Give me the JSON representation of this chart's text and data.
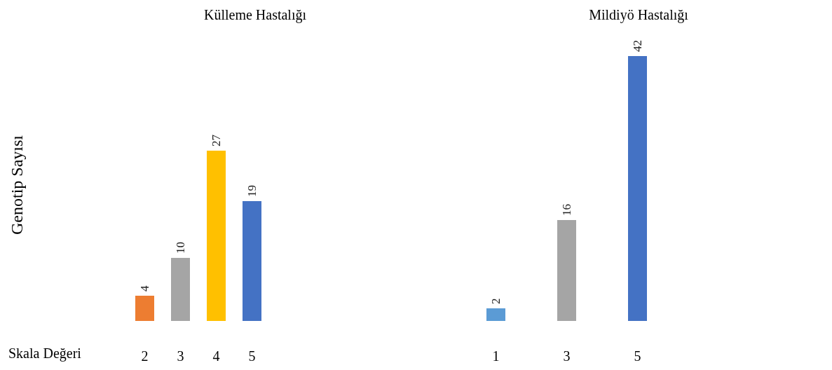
{
  "chart_data": [
    {
      "type": "bar",
      "title": "Külleme Hastalığı",
      "xlabel": "Skala Değeri",
      "ylabel": "Genotip Sayısı",
      "categories": [
        "2",
        "3",
        "4",
        "5"
      ],
      "values": [
        4,
        10,
        27,
        19
      ],
      "colors": [
        "#ed7d31",
        "#a5a5a5",
        "#ffc000",
        "#4472c4"
      ],
      "data_labels": true,
      "grid": false
    },
    {
      "type": "bar",
      "title": "Mildiyö Hastalığı",
      "categories": [
        "1",
        "3",
        "5"
      ],
      "values": [
        2,
        16,
        42
      ],
      "colors": [
        "#5b9bd5",
        "#a5a5a5",
        "#4472c4"
      ],
      "data_labels": true,
      "grid": false
    }
  ]
}
